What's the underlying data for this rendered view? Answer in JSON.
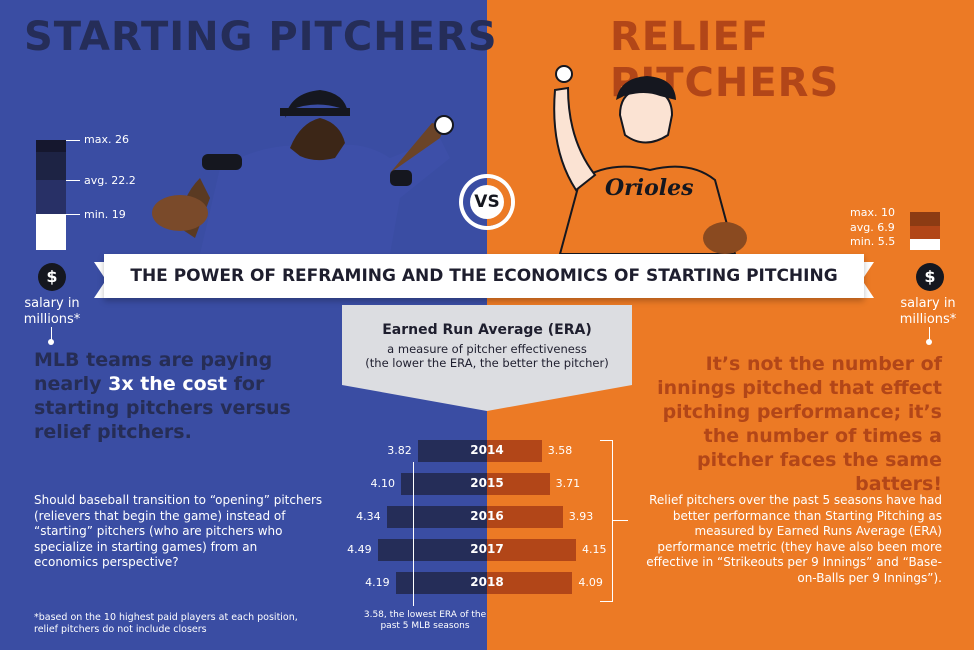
{
  "titles": {
    "left": "STARTING PITCHERS",
    "right": "RELIEF PITCHERS"
  },
  "vs": "VS",
  "banner": "THE POWER OF REFRAMING AND THE ECONOMICS OF STARTING PITCHING",
  "salary": {
    "icon": "dollar-icon",
    "label_line1": "salary in",
    "label_line2": "millions*",
    "starting": {
      "max": "max. 26",
      "avg": "avg. 22.2",
      "min": "min. 19"
    },
    "relief": {
      "max": "max. 10",
      "avg": "avg. 6.9",
      "min": "min. 5.5"
    }
  },
  "left": {
    "headline_pre": "MLB teams are paying nearly ",
    "headline_bold": "3x the cost",
    "headline_post": " for starting pitchers versus relief pitchers.",
    "body": "Should baseball transition to “opening” pitchers (relievers that begin the game) instead of “starting” pitchers (who are pitchers who specialize in starting games) from an economics perspective?",
    "footnote": "*based on the 10 highest paid players at each position, relief pitchers do not include closers"
  },
  "right": {
    "headline": "It’s not the number of innings pitched that effect pitching performance; it’s the number of times a pitcher faces the same batters!",
    "body": "Relief pitchers over the past 5 seasons have had better performance than Starting Pitching as measured by Earned Runs Average (ERA) performance metric (they have also been more effective in “Strikeouts per 9 Innings” and “Base-on-Balls per 9 Innings”)."
  },
  "era": {
    "title": "Earned Run Average (ERA)",
    "subtitle1": "a measure of pitcher effectiveness",
    "subtitle2": "(the lower the ERA, the better the pitcher)",
    "rows": [
      {
        "year": "2014",
        "starting": "3.82",
        "relief": "3.58"
      },
      {
        "year": "2015",
        "starting": "4.10",
        "relief": "3.71"
      },
      {
        "year": "2016",
        "starting": "4.34",
        "relief": "3.93"
      },
      {
        "year": "2017",
        "starting": "4.49",
        "relief": "4.15"
      },
      {
        "year": "2018",
        "starting": "4.19",
        "relief": "4.09"
      }
    ],
    "note": "3.58, the lowest ERA of the past 5 MLB seasons"
  },
  "chart_data": {
    "type": "bar",
    "categories": [
      "2014",
      "2015",
      "2016",
      "2017",
      "2018"
    ],
    "series": [
      {
        "name": "STARTING PITCHERS",
        "values": [
          3.82,
          4.1,
          4.34,
          4.49,
          4.19
        ]
      },
      {
        "name": "RELIEF PITCHERS",
        "values": [
          3.58,
          3.71,
          3.93,
          4.15,
          4.09
        ]
      }
    ]
  },
  "colors": {
    "starting_bg": "#3a4da3",
    "relief_bg": "#ec7a25",
    "dark_navy": "#252d58",
    "rust": "#b24618"
  }
}
